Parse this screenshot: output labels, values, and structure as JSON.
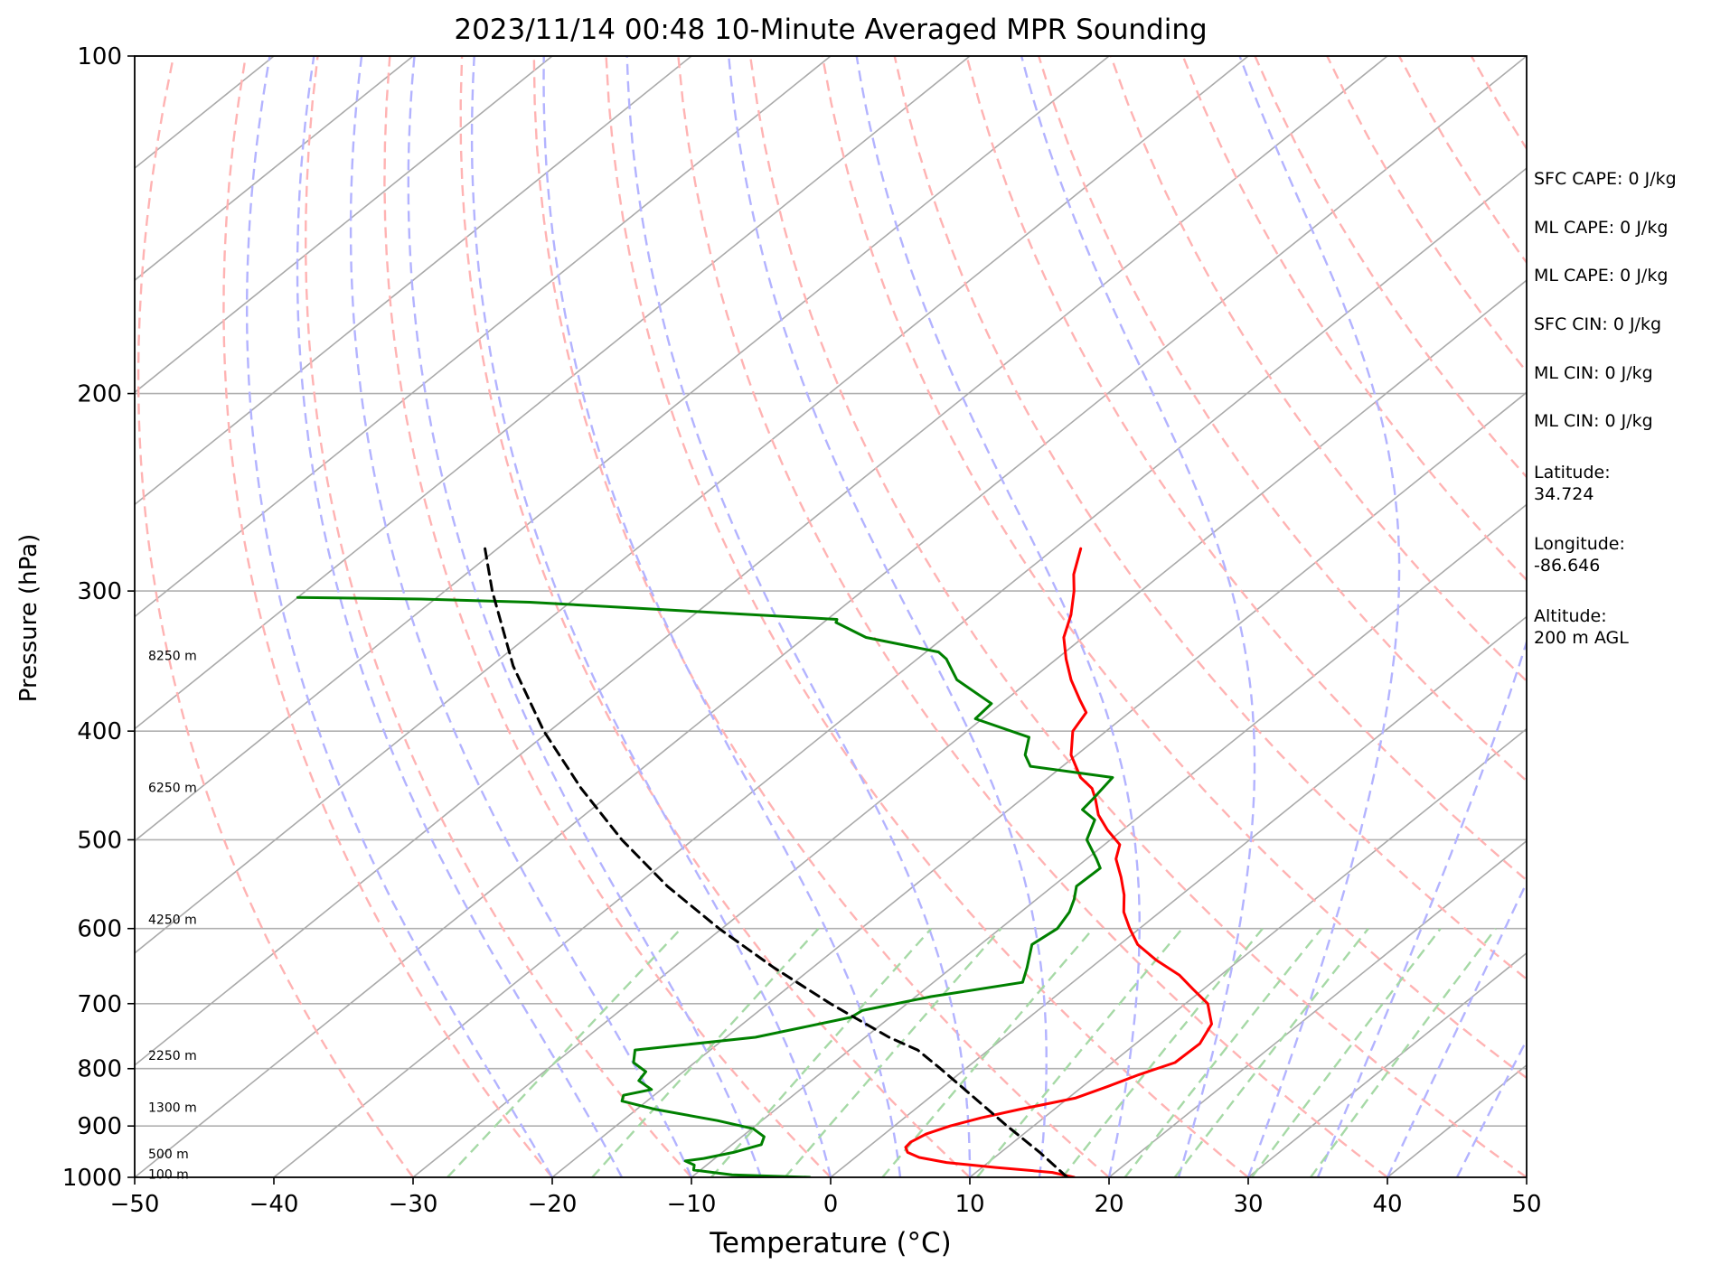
{
  "chart_data": {
    "type": "line",
    "title": "2023/11/14 00:48 10-Minute Averaged MPR Sounding",
    "xlabel": "Temperature (°C)",
    "ylabel": "Pressure (hPa)",
    "xlim": [
      -50,
      50
    ],
    "ylim": [
      1000,
      100
    ],
    "y_scale": "log",
    "skew": true,
    "grid": true,
    "x_ticks": [
      -50,
      -40,
      -30,
      -20,
      -10,
      0,
      10,
      20,
      30,
      40,
      50
    ],
    "x_tick_labels": [
      "−50",
      "−40",
      "−30",
      "−20",
      "−10",
      "0",
      "10",
      "20",
      "30",
      "40",
      "50"
    ],
    "y_ticks": [
      1000,
      900,
      800,
      700,
      600,
      500,
      400,
      300,
      200,
      100
    ],
    "y_tick_labels": [
      "1000",
      "900",
      "800",
      "700",
      "600",
      "500",
      "400",
      "300",
      "200",
      "100"
    ],
    "series": [
      {
        "kind": "temperature",
        "color": "#ff0000",
        "points": [
          {
            "p": 1000,
            "t": 17.5
          },
          {
            "p": 990,
            "t": 15.5
          },
          {
            "p": 980,
            "t": 11.0
          },
          {
            "p": 970,
            "t": 7.0
          },
          {
            "p": 960,
            "t": 4.6
          },
          {
            "p": 950,
            "t": 3.3
          },
          {
            "p": 940,
            "t": 2.7
          },
          {
            "p": 930,
            "t": 2.6
          },
          {
            "p": 915,
            "t": 3.0
          },
          {
            "p": 900,
            "t": 4.0
          },
          {
            "p": 885,
            "t": 5.5
          },
          {
            "p": 870,
            "t": 7.5
          },
          {
            "p": 850,
            "t": 10.5
          },
          {
            "p": 830,
            "t": 11.8
          },
          {
            "p": 810,
            "t": 13.0
          },
          {
            "p": 790,
            "t": 14.5
          },
          {
            "p": 760,
            "t": 14.6
          },
          {
            "p": 730,
            "t": 13.7
          },
          {
            "p": 700,
            "t": 11.6
          },
          {
            "p": 680,
            "t": 9.3
          },
          {
            "p": 660,
            "t": 7.0
          },
          {
            "p": 640,
            "t": 4.0
          },
          {
            "p": 620,
            "t": 1.3
          },
          {
            "p": 600,
            "t": -0.7
          },
          {
            "p": 580,
            "t": -2.6
          },
          {
            "p": 560,
            "t": -4.1
          },
          {
            "p": 540,
            "t": -5.9
          },
          {
            "p": 520,
            "t": -7.9
          },
          {
            "p": 505,
            "t": -8.9
          },
          {
            "p": 490,
            "t": -11.1
          },
          {
            "p": 475,
            "t": -13.1
          },
          {
            "p": 460,
            "t": -14.7
          },
          {
            "p": 450,
            "t": -15.9
          },
          {
            "p": 440,
            "t": -17.7
          },
          {
            "p": 420,
            "t": -20.4
          },
          {
            "p": 400,
            "t": -22.4
          },
          {
            "p": 385,
            "t": -23.1
          },
          {
            "p": 375,
            "t": -24.7
          },
          {
            "p": 360,
            "t": -27.1
          },
          {
            "p": 345,
            "t": -29.3
          },
          {
            "p": 330,
            "t": -31.4
          },
          {
            "p": 315,
            "t": -32.9
          },
          {
            "p": 300,
            "t": -34.8
          },
          {
            "p": 290,
            "t": -36.3
          },
          {
            "p": 275,
            "t": -38.1
          }
        ]
      },
      {
        "kind": "dewpoint",
        "color": "#008000",
        "points": [
          {
            "p": 1000,
            "t": -1.5
          },
          {
            "p": 995,
            "t": -7.3
          },
          {
            "p": 985,
            "t": -10.5
          },
          {
            "p": 975,
            "t": -10.9
          },
          {
            "p": 967,
            "t": -11.9
          },
          {
            "p": 962,
            "t": -10.8
          },
          {
            "p": 950,
            "t": -9.2
          },
          {
            "p": 935,
            "t": -7.9
          },
          {
            "p": 920,
            "t": -8.4
          },
          {
            "p": 905,
            "t": -9.9
          },
          {
            "p": 890,
            "t": -13.2
          },
          {
            "p": 870,
            "t": -18.6
          },
          {
            "p": 855,
            "t": -21.8
          },
          {
            "p": 845,
            "t": -22.2
          },
          {
            "p": 835,
            "t": -20.7
          },
          {
            "p": 820,
            "t": -22.4
          },
          {
            "p": 805,
            "t": -22.7
          },
          {
            "p": 790,
            "t": -24.4
          },
          {
            "p": 770,
            "t": -25.4
          },
          {
            "p": 750,
            "t": -17.9
          },
          {
            "p": 720,
            "t": -12.8
          },
          {
            "p": 710,
            "t": -12.6
          },
          {
            "p": 690,
            "t": -8.9
          },
          {
            "p": 670,
            "t": -3.6
          },
          {
            "p": 650,
            "t": -4.6
          },
          {
            "p": 620,
            "t": -6.3
          },
          {
            "p": 600,
            "t": -5.9
          },
          {
            "p": 580,
            "t": -6.5
          },
          {
            "p": 565,
            "t": -7.3
          },
          {
            "p": 550,
            "t": -8.3
          },
          {
            "p": 530,
            "t": -8.2
          },
          {
            "p": 520,
            "t": -9.3
          },
          {
            "p": 500,
            "t": -11.7
          },
          {
            "p": 480,
            "t": -12.9
          },
          {
            "p": 470,
            "t": -14.7
          },
          {
            "p": 460,
            "t": -14.9
          },
          {
            "p": 440,
            "t": -15.4
          },
          {
            "p": 430,
            "t": -22.3
          },
          {
            "p": 420,
            "t": -23.7
          },
          {
            "p": 405,
            "t": -25.0
          },
          {
            "p": 390,
            "t": -30.5
          },
          {
            "p": 378,
            "t": -30.7
          },
          {
            "p": 360,
            "t": -35.3
          },
          {
            "p": 345,
            "t": -37.9
          },
          {
            "p": 340,
            "t": -39.1
          },
          {
            "p": 330,
            "t": -45.6
          },
          {
            "p": 320,
            "t": -49.1
          },
          {
            "p": 318,
            "t": -49.3
          },
          {
            "p": 307,
            "t": -72.9
          },
          {
            "p": 305,
            "t": -81.0
          },
          {
            "p": 304,
            "t": -90.0
          }
        ]
      },
      {
        "kind": "parcel",
        "color": "#000000",
        "style": "dashed",
        "points": [
          {
            "p": 1000,
            "t": 17.0
          },
          {
            "p": 950,
            "t": 12.8
          },
          {
            "p": 900,
            "t": 8.1
          },
          {
            "p": 850,
            "t": 3.3
          },
          {
            "p": 800,
            "t": -1.8
          },
          {
            "p": 770,
            "t": -5.1
          },
          {
            "p": 750,
            "t": -8.3
          },
          {
            "p": 700,
            "t": -15.5
          },
          {
            "p": 650,
            "t": -22.8
          },
          {
            "p": 600,
            "t": -30.2
          },
          {
            "p": 550,
            "t": -37.7
          },
          {
            "p": 500,
            "t": -45.1
          },
          {
            "p": 450,
            "t": -52.6
          },
          {
            "p": 400,
            "t": -60.4
          },
          {
            "p": 350,
            "t": -68.4
          },
          {
            "p": 300,
            "t": -76.6
          },
          {
            "p": 275,
            "t": -80.9
          }
        ]
      }
    ],
    "height_labels": [
      {
        "p": 995,
        "label": "100 m"
      },
      {
        "p": 955,
        "label": "500 m"
      },
      {
        "p": 868,
        "label": "1300 m"
      },
      {
        "p": 780,
        "label": "2250 m"
      },
      {
        "p": 590,
        "label": "4250 m"
      },
      {
        "p": 450,
        "label": "6250 m"
      },
      {
        "p": 343,
        "label": "8250 m"
      }
    ],
    "reference_lines": {
      "isotherms": {
        "color": "#aaaaaa"
      },
      "dry_adiabats": {
        "color": "#ffb3b3",
        "style": "dashed"
      },
      "moist_adiabats": {
        "color": "#b3b3ff",
        "style": "dashed"
      },
      "mixing_ratio": {
        "color": "#a6d9a6",
        "style": "dashed"
      }
    }
  },
  "info_panel": [
    "SFC CAPE: 0 J/kg",
    "ML CAPE: 0 J/kg",
    "ML CAPE: 0 J/kg",
    "SFC CIN: 0 J/kg",
    "ML CIN: 0 J/kg",
    "ML CIN: 0 J/kg",
    "Latitude:\n34.724",
    "Longitude:\n-86.646",
    "Altitude:\n200 m AGL"
  ]
}
